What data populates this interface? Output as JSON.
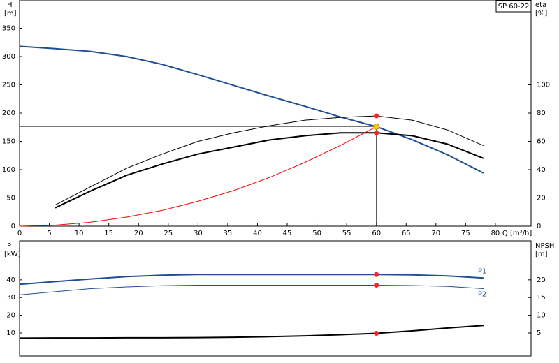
{
  "chart_data": [
    {
      "type": "line",
      "label": "SP 60-22",
      "ylabel": "H",
      "yunit": "[m]",
      "y2label": "eta",
      "y2unit": "[%]",
      "xlabel": "Q [m³/h]",
      "xlim": [
        0,
        86
      ],
      "xticks": [
        0,
        5,
        10,
        15,
        20,
        25,
        30,
        35,
        40,
        45,
        50,
        55,
        60,
        65,
        70,
        75,
        80
      ],
      "ylim": [
        0,
        400
      ],
      "yticks": [
        0,
        50,
        100,
        150,
        200,
        250,
        300,
        350
      ],
      "y2lim": [
        0,
        160
      ],
      "y2ticks": [
        0,
        20,
        40,
        60,
        80,
        100
      ],
      "duty_point": {
        "x": 60,
        "y": 176,
        "color": "#ffcc00"
      },
      "series": [
        {
          "color": "#1f4e96",
          "width": 2,
          "x": [
            0,
            6,
            12,
            18,
            24,
            30,
            36,
            42,
            48,
            54,
            60,
            66,
            72,
            78
          ],
          "values": [
            318,
            314,
            309,
            300,
            286,
            268,
            249,
            230,
            212,
            193,
            176,
            153,
            126,
            94
          ]
        },
        {
          "color": "#000000",
          "width": 1,
          "axis": "y2",
          "x": [
            6,
            12,
            18,
            24,
            30,
            36,
            42,
            48,
            54,
            60,
            66,
            72,
            78
          ],
          "values": [
            15,
            28,
            41,
            51,
            60,
            66,
            71,
            75,
            77,
            78,
            75,
            68,
            57
          ]
        },
        {
          "color": "#000000",
          "width": 2,
          "axis": "y2",
          "x": [
            6,
            12,
            18,
            24,
            30,
            36,
            42,
            48,
            54,
            60,
            66,
            72,
            78
          ],
          "values": [
            13,
            25,
            36,
            44,
            51,
            56,
            61,
            64,
            66,
            66,
            64,
            58,
            48
          ]
        },
        {
          "color": "#ff0000",
          "width": 1,
          "x": [
            0,
            6,
            12,
            18,
            24,
            30,
            36,
            42,
            48,
            54,
            60
          ],
          "values": [
            0,
            1.8,
            7,
            16,
            28,
            44,
            63,
            86,
            113,
            143,
            176
          ]
        }
      ]
    },
    {
      "type": "line",
      "ylabel": "P",
      "yunit": "[kW]",
      "y2label": "NPSH",
      "y2unit": "[m]",
      "xlim": [
        0,
        86
      ],
      "ylim": [
        -3,
        62
      ],
      "yticks": [
        10,
        20,
        30,
        40
      ],
      "y2lim": [
        -1.5,
        31
      ],
      "y2ticks": [
        5,
        10,
        15,
        20
      ],
      "marker_x": 60,
      "series": [
        {
          "name": "P1",
          "color": "#1f4e96",
          "width": 2,
          "x": [
            0,
            6,
            12,
            18,
            24,
            30,
            36,
            42,
            48,
            54,
            60,
            66,
            72,
            78
          ],
          "values": [
            37.5,
            39,
            40.5,
            41.8,
            42.6,
            43,
            43,
            43,
            43,
            43,
            43,
            42.8,
            42.2,
            41
          ]
        },
        {
          "name": "P2",
          "color": "#1f4e96",
          "width": 1,
          "x": [
            0,
            6,
            12,
            18,
            24,
            30,
            36,
            42,
            48,
            54,
            60,
            66,
            72,
            78
          ],
          "values": [
            31.5,
            33.3,
            35,
            36,
            36.7,
            37,
            37,
            37,
            37,
            37,
            37,
            36.8,
            36.3,
            35
          ]
        },
        {
          "color": "#000000",
          "width": 2,
          "axis": "y2",
          "x": [
            0,
            6,
            12,
            18,
            24,
            30,
            36,
            42,
            48,
            54,
            60,
            66,
            72,
            78
          ],
          "values": [
            3.55,
            3.6,
            3.6,
            3.65,
            3.65,
            3.7,
            3.8,
            3.95,
            4.2,
            4.5,
            4.9,
            5.6,
            6.4,
            7.1
          ]
        }
      ]
    }
  ]
}
